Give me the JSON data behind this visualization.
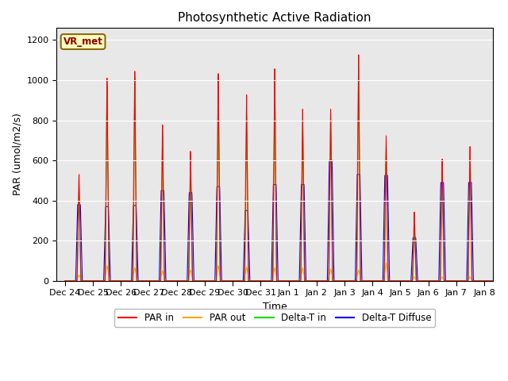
{
  "title": "Photosynthetic Active Radiation",
  "xlabel": "Time",
  "ylabel": "PAR (umol/m2/s)",
  "ylim": [
    0,
    1260
  ],
  "yticks": [
    0,
    200,
    400,
    600,
    800,
    1000,
    1200
  ],
  "label_box_text": "VR_met",
  "label_box_facecolor": "#FFFFC0",
  "label_box_edgecolor": "#8B6914",
  "label_box_textcolor": "#8B0000",
  "background_color": "#E8E8E8",
  "grid_color": "#FFFFFF",
  "legend_labels": [
    "PAR in",
    "PAR out",
    "Delta-T in",
    "Delta-T Diffuse"
  ],
  "legend_colors": [
    "#FF0000",
    "#FFA500",
    "#00DD00",
    "#0000FF"
  ],
  "tick_labels": [
    "Dec 24",
    "Dec 25",
    "Dec 26",
    "Dec 27",
    "Dec 28",
    "Dec 29",
    "Dec 30",
    "Dec 31",
    "Jan 1",
    "Jan 2",
    "Jan 3",
    "Jan 4",
    "Jan 5",
    "Jan 6",
    "Jan 7",
    "Jan 8"
  ],
  "par_in_peaks": [
    540,
    1040,
    1065,
    790,
    670,
    1060,
    940,
    1060,
    870,
    870,
    1130,
    720,
    350,
    630,
    670,
    0
  ],
  "par_out_peaks": [
    30,
    75,
    65,
    50,
    55,
    75,
    70,
    65,
    65,
    60,
    55,
    90,
    20,
    20,
    20,
    0
  ],
  "delta_t_in_peaks": [
    470,
    980,
    1020,
    740,
    590,
    1020,
    830,
    1020,
    820,
    820,
    1060,
    680,
    290,
    570,
    620,
    0
  ],
  "delta_t_diff_peaks": [
    380,
    370,
    375,
    450,
    440,
    470,
    350,
    480,
    480,
    600,
    530,
    525,
    215,
    490,
    490,
    0
  ],
  "n_days": 16,
  "pts_per_day": 144
}
